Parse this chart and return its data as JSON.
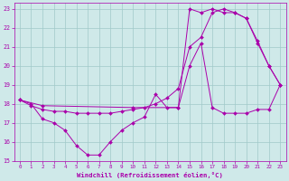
{
  "xlabel": "Windchill (Refroidissement éolien,°C)",
  "xlim": [
    -0.5,
    23.5
  ],
  "ylim": [
    15,
    23.3
  ],
  "yticks": [
    15,
    16,
    17,
    18,
    19,
    20,
    21,
    22,
    23
  ],
  "xticks": [
    0,
    1,
    2,
    3,
    4,
    5,
    6,
    7,
    8,
    9,
    10,
    11,
    12,
    13,
    14,
    15,
    16,
    17,
    18,
    19,
    20,
    21,
    22,
    23
  ],
  "bg_color": "#cfe9e9",
  "grid_color": "#a0c8c8",
  "line_color": "#aa00aa",
  "line1_x": [
    0,
    1,
    2,
    3,
    4,
    5,
    6,
    7,
    8,
    9,
    10,
    11,
    12,
    13,
    14,
    15,
    16,
    17,
    18,
    19,
    20,
    21,
    22,
    23
  ],
  "line1_y": [
    18.2,
    18.0,
    17.2,
    17.0,
    16.6,
    15.8,
    15.3,
    15.3,
    16.0,
    16.6,
    17.0,
    17.3,
    18.5,
    17.8,
    17.8,
    20.0,
    21.2,
    17.8,
    17.5,
    17.5,
    17.5,
    17.7,
    17.7,
    19.0
  ],
  "line2_x": [
    0,
    1,
    2,
    3,
    4,
    5,
    6,
    7,
    8,
    9,
    10,
    11,
    12,
    13,
    14,
    15,
    16,
    17,
    18,
    19,
    20,
    21,
    22,
    23
  ],
  "line2_y": [
    18.2,
    17.9,
    17.7,
    17.6,
    17.6,
    17.5,
    17.5,
    17.5,
    17.5,
    17.6,
    17.7,
    17.8,
    18.0,
    18.3,
    18.8,
    21.0,
    21.5,
    22.8,
    23.0,
    22.8,
    22.5,
    21.3,
    20.0,
    19.0
  ],
  "line3_x": [
    0,
    2,
    10,
    14,
    15,
    16,
    17,
    18,
    19,
    20,
    21,
    22,
    23
  ],
  "line3_y": [
    18.2,
    17.9,
    17.8,
    17.8,
    23.0,
    22.8,
    23.0,
    22.8,
    22.8,
    22.5,
    21.2,
    20.0,
    19.0
  ]
}
